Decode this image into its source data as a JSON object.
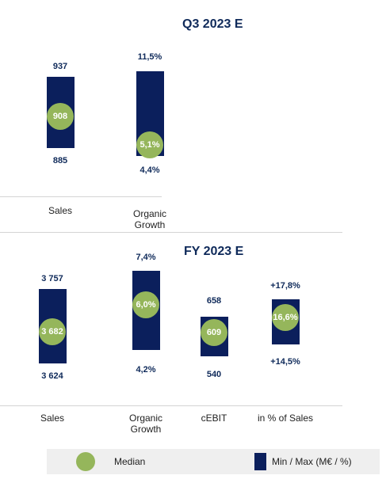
{
  "chart_data": [
    {
      "type": "range-bar",
      "title": "Q3 2023 E",
      "series": [
        {
          "category": "Sales",
          "max": 937,
          "max_label": "937",
          "median": 908,
          "median_label": "908",
          "min": 885,
          "min_label": "885"
        },
        {
          "category": "Organic\nGrowth",
          "max": 11.5,
          "max_label": "11,5%",
          "median": 5.1,
          "median_label": "5,1%",
          "min": 4.4,
          "min_label": "4,4%"
        }
      ]
    },
    {
      "type": "range-bar",
      "title": "FY 2023 E",
      "series": [
        {
          "category": "Sales",
          "max": 3757,
          "max_label": "3 757",
          "median": 3682,
          "median_label": "3 682",
          "min": 3624,
          "min_label": "3 624"
        },
        {
          "category": "Organic\nGrowth",
          "max": 7.4,
          "max_label": "7,4%",
          "median": 6.0,
          "median_label": "6,0%",
          "min": 4.2,
          "min_label": "4,2%"
        },
        {
          "category": "cEBIT",
          "max": 658,
          "max_label": "658",
          "median": 609,
          "median_label": "609",
          "min": 540,
          "min_label": "540"
        },
        {
          "category": "in % of Sales",
          "max": 17.8,
          "max_label": "+17,8%",
          "median": 16.6,
          "median_label": "16,6%",
          "min": 14.5,
          "min_label": "+14,5%"
        }
      ]
    }
  ],
  "legend": {
    "median_label": "Median",
    "range_label": "Min / Max (M€ / %)"
  },
  "colors": {
    "bar": "#0b1f5c",
    "median": "#95b65b",
    "value_text": "#0f2a5a"
  }
}
